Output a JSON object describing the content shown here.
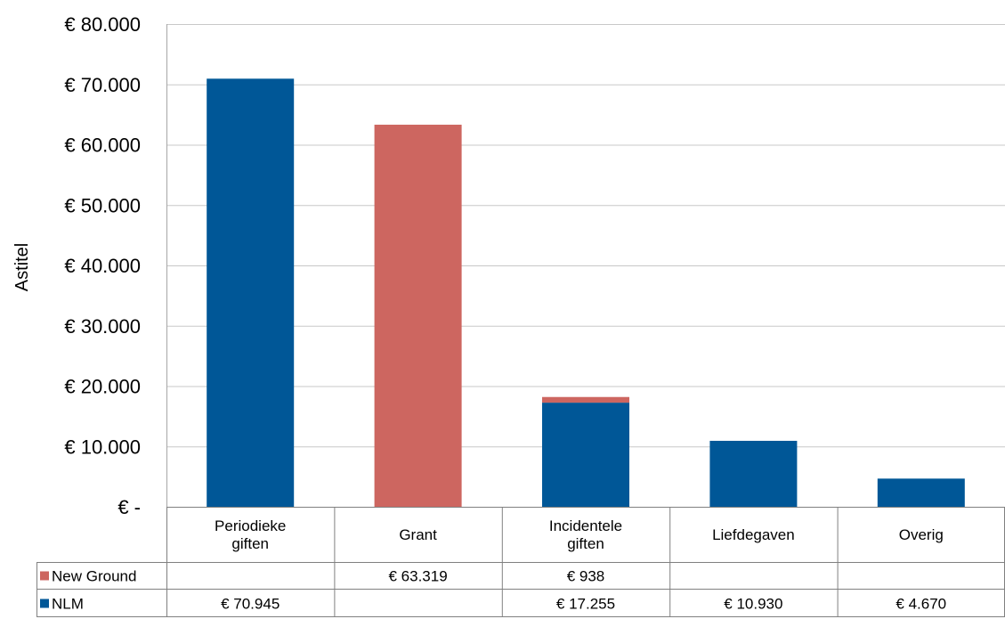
{
  "chart_data": {
    "type": "bar",
    "stacked": true,
    "ylabel": "Astitel",
    "ylim": [
      0,
      80000
    ],
    "grid": true,
    "legend": "data-table-left",
    "y_tick_labels": [
      "€ -",
      "€ 10.000",
      "€ 20.000",
      "€ 30.000",
      "€ 40.000",
      "€ 50.000",
      "€ 60.000",
      "€ 70.000",
      "€ 80.000"
    ],
    "y_ticks": [
      0,
      10000,
      20000,
      30000,
      40000,
      50000,
      60000,
      70000,
      80000
    ],
    "categories": [
      [
        "Periodieke",
        "giften"
      ],
      [
        "Grant"
      ],
      [
        "Incidentele",
        "giften"
      ],
      [
        "Liefdegaven"
      ],
      [
        "Overig"
      ]
    ],
    "series": [
      {
        "name": "NLM",
        "color": "#005797",
        "values": [
          70945,
          null,
          17255,
          10930,
          4670
        ],
        "labels": [
          "€ 70.945",
          "",
          "€ 17.255",
          "€ 10.930",
          "€ 4.670"
        ]
      },
      {
        "name": "New Ground",
        "color": "#cd6660",
        "values": [
          null,
          63319,
          938,
          null,
          null
        ],
        "labels": [
          "",
          "€ 63.319",
          "€ 938",
          "",
          ""
        ]
      }
    ],
    "table_row_order": [
      1,
      0
    ]
  }
}
